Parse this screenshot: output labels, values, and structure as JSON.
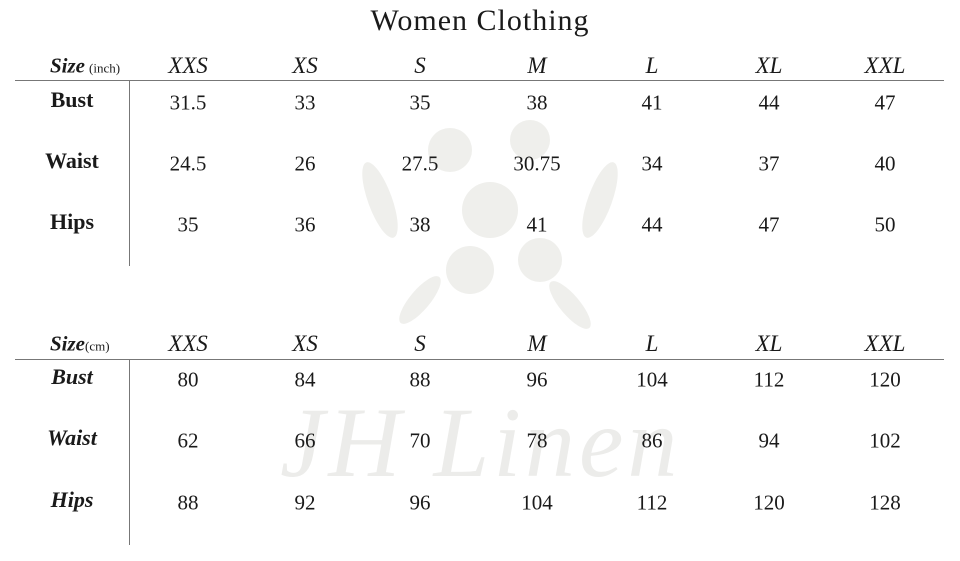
{
  "title": "Women Clothing",
  "watermark": "JH Linen",
  "sizes": [
    "XXS",
    "XS",
    "S",
    "M",
    "L",
    "XL",
    "XXL"
  ],
  "tables": [
    {
      "size_label": "Size",
      "unit": "(inch)",
      "rows": [
        {
          "label": "Bust",
          "values": [
            "31.5",
            "33",
            "35",
            "38",
            "41",
            "44",
            "47"
          ]
        },
        {
          "label": "Waist",
          "values": [
            "24.5",
            "26",
            "27.5",
            "30.75",
            "34",
            "37",
            "40"
          ]
        },
        {
          "label": "Hips",
          "values": [
            "35",
            "36",
            "38",
            "41",
            "44",
            "47",
            "50"
          ]
        }
      ]
    },
    {
      "size_label": "Size",
      "unit": "(cm)",
      "rows": [
        {
          "label": "Bust",
          "values": [
            "80",
            "84",
            "88",
            "96",
            "104",
            "112",
            "120"
          ]
        },
        {
          "label": "Waist",
          "values": [
            "62",
            "66",
            "70",
            "78",
            "86",
            "94",
            "102"
          ]
        },
        {
          "label": "Hips",
          "values": [
            "88",
            "92",
            "96",
            "104",
            "112",
            "120",
            "128"
          ]
        }
      ]
    }
  ]
}
